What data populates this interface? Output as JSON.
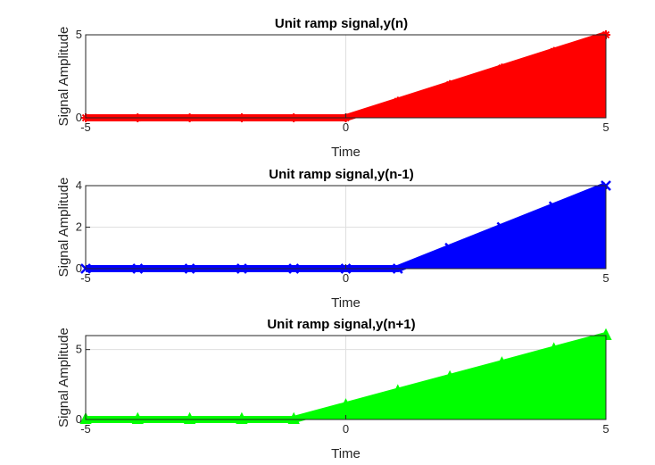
{
  "chart_data": [
    {
      "type": "area",
      "title": "Unit ramp signal,y(n)",
      "xlabel": "Time",
      "ylabel": "Signal Amplitude",
      "color": "#ff0000",
      "marker": "star",
      "xlim": [
        -5,
        5
      ],
      "ylim": [
        0,
        5
      ],
      "xticks": [
        -5,
        0,
        5
      ],
      "yticks": [
        0,
        5
      ],
      "grid": true,
      "series": [
        {
          "x": [
            -5,
            -4,
            -3,
            -2,
            -1,
            0,
            1,
            2,
            3,
            4,
            5
          ],
          "values": [
            0,
            0,
            0,
            0,
            0,
            0,
            1,
            2,
            3,
            4,
            5
          ]
        }
      ]
    },
    {
      "type": "area",
      "title": "Unit ramp signal,y(n-1)",
      "xlabel": "Time",
      "ylabel": "Signal Amplitude",
      "color": "#0000ff",
      "marker": "x",
      "xlim": [
        -5,
        5
      ],
      "ylim": [
        0,
        4
      ],
      "xticks": [
        -5,
        0,
        5
      ],
      "yticks": [
        0,
        2,
        4
      ],
      "grid": true,
      "series": [
        {
          "x": [
            -5,
            -4,
            -3,
            -2,
            -1,
            0,
            1,
            2,
            3,
            4,
            5
          ],
          "values": [
            0,
            0,
            0,
            0,
            0,
            0,
            0,
            1,
            2,
            3,
            4
          ]
        }
      ]
    },
    {
      "type": "area",
      "title": "Unit ramp signal,y(n+1)",
      "xlabel": "Time",
      "ylabel": "Signal Amplitude",
      "color": "#00ff00",
      "marker": "triangle",
      "xlim": [
        -5,
        5
      ],
      "ylim": [
        0,
        6
      ],
      "xticks": [
        -5,
        0,
        5
      ],
      "yticks": [
        0,
        5
      ],
      "grid": true,
      "series": [
        {
          "x": [
            -5,
            -4,
            -3,
            -2,
            -1,
            0,
            1,
            2,
            3,
            4,
            5
          ],
          "values": [
            0,
            0,
            0,
            0,
            0,
            1,
            2,
            3,
            4,
            5,
            6
          ]
        }
      ]
    }
  ]
}
